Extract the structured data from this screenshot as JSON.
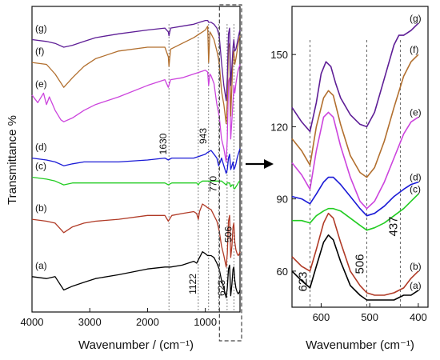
{
  "chart_data": [
    {
      "type": "line",
      "panel": "left",
      "xlabel": "Wavenumber / (cm⁻¹)",
      "ylabel": "Transmittance %",
      "xlim": [
        4000,
        400
      ],
      "x_ticks": [
        "4000",
        "3000",
        "2000",
        "1000"
      ],
      "grid": false,
      "legend": "labels at left end of curves",
      "zoom_box_range": [
        700,
        400
      ],
      "series": [
        {
          "name": "(a)",
          "color": "#000000",
          "x": [
            4000,
            3750,
            3600,
            3450,
            3300,
            3100,
            2900,
            2500,
            2000,
            1700,
            1600,
            1400,
            1200,
            1150,
            1100,
            1050,
            1000,
            960,
            900,
            850,
            800,
            760,
            720,
            680,
            640,
            620,
            600,
            580,
            560,
            540,
            520,
            506,
            490,
            470,
            450,
            430,
            410,
            400
          ],
          "y": [
            8,
            7,
            8,
            1,
            3,
            5,
            7,
            9,
            12,
            13,
            13,
            14,
            16,
            15,
            18,
            21,
            20,
            19,
            19,
            18,
            15,
            12,
            6,
            2,
            -3,
            2,
            12,
            14,
            -2,
            4,
            12,
            13,
            6,
            2,
            0,
            -1,
            0,
            1
          ]
        },
        {
          "name": "(b)",
          "color": "#b03a26",
          "x": [
            4000,
            3750,
            3600,
            3450,
            3300,
            3100,
            2900,
            2500,
            2000,
            1700,
            1640,
            1580,
            1400,
            1200,
            1150,
            1122,
            1100,
            1050,
            1000,
            960,
            900,
            850,
            800,
            760,
            720,
            680,
            640,
            620,
            600,
            580,
            560,
            540,
            520,
            506,
            490,
            470,
            450,
            430,
            410,
            400
          ],
          "y": [
            38,
            37,
            36,
            31,
            34,
            36,
            37,
            38,
            40,
            40,
            37,
            40,
            41,
            42,
            41,
            38,
            42,
            46,
            45,
            44,
            43,
            40,
            37,
            32,
            24,
            19,
            13,
            20,
            37,
            40,
            18,
            24,
            34,
            36,
            26,
            22,
            20,
            19,
            20,
            21
          ]
        },
        {
          "name": "(c)",
          "color": "#22cc22",
          "x": [
            4000,
            3750,
            3600,
            3450,
            3300,
            3100,
            2900,
            2500,
            2000,
            1700,
            1640,
            1580,
            1400,
            1200,
            1150,
            1122,
            1100,
            1050,
            1000,
            960,
            900,
            850,
            800,
            760,
            720,
            680,
            640,
            620,
            600,
            580,
            560,
            540,
            520,
            506,
            490,
            470,
            450,
            430,
            410,
            400
          ],
          "y": [
            60,
            59,
            58,
            56,
            57,
            57,
            57,
            57,
            57,
            57,
            56,
            57,
            57,
            57,
            57,
            56,
            57,
            58,
            58,
            58,
            58,
            58,
            58,
            58,
            58,
            57,
            56,
            57,
            57,
            57,
            55,
            56,
            56,
            54,
            54,
            55,
            56,
            57,
            58,
            58
          ]
        },
        {
          "name": "(d)",
          "color": "#1a1ad6",
          "x": [
            4000,
            3750,
            3600,
            3450,
            3300,
            3100,
            2900,
            2500,
            2000,
            1700,
            1640,
            1580,
            1400,
            1200,
            1100,
            1000,
            960,
            900,
            850,
            800,
            770,
            740,
            720,
            680,
            640,
            620,
            600,
            580,
            560,
            540,
            520,
            506,
            490,
            470,
            450,
            430,
            410,
            400
          ],
          "y": [
            70,
            69,
            68,
            66,
            67,
            68,
            68,
            68,
            69,
            70,
            69,
            70,
            70,
            70,
            71,
            72,
            73,
            74,
            72,
            70,
            66,
            68,
            70,
            66,
            62,
            64,
            70,
            72,
            64,
            66,
            68,
            64,
            65,
            67,
            70,
            72,
            74,
            75
          ]
        },
        {
          "name": "(e)",
          "color": "#cc44dd",
          "x": [
            4000,
            3900,
            3800,
            3750,
            3700,
            3600,
            3500,
            3450,
            3300,
            3100,
            2900,
            2500,
            2000,
            1700,
            1640,
            1600,
            1400,
            1200,
            1100,
            1000,
            960,
            943,
            920,
            900,
            850,
            800,
            760,
            720,
            680,
            640,
            620,
            600,
            580,
            560,
            540,
            520,
            506,
            490,
            470,
            450,
            430,
            410,
            400
          ],
          "y": [
            103,
            99,
            104,
            98,
            102,
            95,
            90,
            89,
            91,
            95,
            98,
            102,
            108,
            111,
            107,
            111,
            112,
            114,
            115,
            116,
            115,
            108,
            114,
            113,
            109,
            98,
            92,
            80,
            75,
            68,
            80,
            110,
            112,
            80,
            90,
            100,
            108,
            104,
            109,
            113,
            116,
            118,
            119
          ]
        },
        {
          "name": "(f)",
          "color": "#b26f2e",
          "x": [
            4000,
            3750,
            3600,
            3450,
            3300,
            3100,
            2900,
            2500,
            2000,
            1700,
            1640,
            1630,
            1600,
            1400,
            1200,
            1100,
            1000,
            960,
            943,
            920,
            900,
            850,
            800,
            760,
            720,
            680,
            640,
            620,
            600,
            580,
            560,
            540,
            520,
            506,
            490,
            470,
            450,
            430,
            410,
            400
          ],
          "y": [
            120,
            119,
            114,
            107,
            112,
            118,
            122,
            126,
            128,
            128,
            123,
            118,
            127,
            130,
            133,
            135,
            137,
            139,
            120,
            136,
            135,
            132,
            126,
            120,
            105,
            98,
            88,
            100,
            128,
            130,
            92,
            108,
            124,
            126,
            119,
            122,
            126,
            130,
            133,
            134
          ]
        },
        {
          "name": "(g)",
          "color": "#5e1e96",
          "x": [
            4000,
            3750,
            3600,
            3450,
            3300,
            3100,
            2900,
            2500,
            2000,
            1700,
            1640,
            1630,
            1600,
            1400,
            1200,
            1100,
            1000,
            960,
            943,
            920,
            900,
            850,
            800,
            760,
            720,
            680,
            640,
            620,
            600,
            580,
            560,
            540,
            520,
            506,
            490,
            470,
            450,
            430,
            410,
            400
          ],
          "y": [
            132,
            131,
            130,
            128,
            129,
            131,
            133,
            135,
            137,
            138,
            136,
            134,
            138,
            139,
            140,
            141,
            142,
            142,
            141,
            141,
            141,
            140,
            138,
            134,
            120,
            108,
            100,
            112,
            135,
            138,
            108,
            118,
            128,
            132,
            126,
            127,
            130,
            133,
            136,
            137
          ]
        }
      ],
      "annotations": [
        {
          "text": "1630",
          "x": 1630,
          "orientation": "vertical"
        },
        {
          "text": "1122",
          "x": 1122,
          "orientation": "vertical"
        },
        {
          "text": "943",
          "x": 943,
          "orientation": "vertical"
        },
        {
          "text": "770",
          "x": 770,
          "orientation": "vertical"
        },
        {
          "text": "623",
          "x": 623,
          "orientation": "vertical"
        },
        {
          "text": "506",
          "x": 506,
          "orientation": "vertical"
        }
      ]
    },
    {
      "type": "line",
      "panel": "right",
      "xlabel": "Wavenumber (cm⁻¹)",
      "xlim": [
        660,
        380
      ],
      "ylim": [
        45,
        170
      ],
      "x_ticks": [
        "600",
        "500",
        "400"
      ],
      "y_ticks": [
        "60",
        "90",
        "120",
        "150"
      ],
      "grid": false,
      "legend": "labels at right end of curves",
      "series": [
        {
          "name": "(a)",
          "color": "#000000",
          "x": [
            660,
            640,
            623,
            610,
            595,
            585,
            575,
            560,
            540,
            520,
            506,
            490,
            470,
            450,
            430,
            415,
            400
          ],
          "y": [
            60,
            56,
            53,
            62,
            72,
            75,
            73,
            64,
            54,
            50,
            48,
            48,
            48,
            48,
            50,
            50,
            52
          ]
        },
        {
          "name": "(b)",
          "color": "#b03a26",
          "x": [
            660,
            640,
            623,
            610,
            595,
            585,
            575,
            560,
            540,
            520,
            506,
            490,
            470,
            450,
            430,
            415,
            400
          ],
          "y": [
            66,
            62,
            60,
            69,
            80,
            84,
            82,
            72,
            60,
            54,
            51,
            50,
            50,
            51,
            53,
            57,
            60
          ]
        },
        {
          "name": "(c)",
          "color": "#22cc22",
          "x": [
            660,
            640,
            623,
            610,
            595,
            585,
            575,
            560,
            540,
            520,
            506,
            490,
            470,
            450,
            430,
            415,
            400
          ],
          "y": [
            81,
            81,
            80,
            83,
            85,
            86,
            86,
            85,
            82,
            79,
            77,
            78,
            80,
            83,
            86,
            89,
            92
          ]
        },
        {
          "name": "(d)",
          "color": "#1a1ad6",
          "x": [
            660,
            640,
            623,
            610,
            595,
            585,
            575,
            560,
            540,
            520,
            506,
            490,
            470,
            450,
            430,
            415,
            400
          ],
          "y": [
            91,
            90,
            88,
            92,
            97,
            99,
            99,
            96,
            91,
            86,
            83,
            84,
            87,
            91,
            94,
            96,
            97
          ]
        },
        {
          "name": "(e)",
          "color": "#cc44dd",
          "x": [
            660,
            640,
            623,
            610,
            595,
            585,
            575,
            560,
            540,
            520,
            506,
            490,
            470,
            450,
            430,
            415,
            400
          ],
          "y": [
            105,
            100,
            94,
            110,
            124,
            126,
            124,
            112,
            99,
            89,
            86,
            89,
            97,
            107,
            117,
            122,
            124
          ]
        },
        {
          "name": "(f)",
          "color": "#b26f2e",
          "x": [
            660,
            640,
            623,
            610,
            595,
            585,
            575,
            560,
            540,
            520,
            506,
            490,
            470,
            450,
            430,
            415,
            400
          ],
          "y": [
            115,
            110,
            104,
            120,
            132,
            135,
            133,
            121,
            108,
            101,
            99,
            103,
            114,
            128,
            141,
            147,
            150
          ]
        },
        {
          "name": "(g)",
          "color": "#5e1e96",
          "x": [
            660,
            640,
            623,
            610,
            600,
            590,
            580,
            570,
            560,
            540,
            520,
            506,
            490,
            470,
            450,
            440,
            430,
            415,
            400
          ],
          "y": [
            128,
            122,
            118,
            130,
            142,
            147,
            145,
            138,
            132,
            125,
            121,
            120,
            126,
            140,
            154,
            158,
            158,
            160,
            163
          ]
        }
      ],
      "annotations": [
        {
          "text": "623",
          "x": 623,
          "orientation": "vertical"
        },
        {
          "text": "506",
          "x": 506,
          "orientation": "vertical"
        },
        {
          "text": "437",
          "x": 437,
          "orientation": "vertical"
        }
      ]
    }
  ],
  "left_axis": {
    "ylabel": "Transmittance %"
  }
}
